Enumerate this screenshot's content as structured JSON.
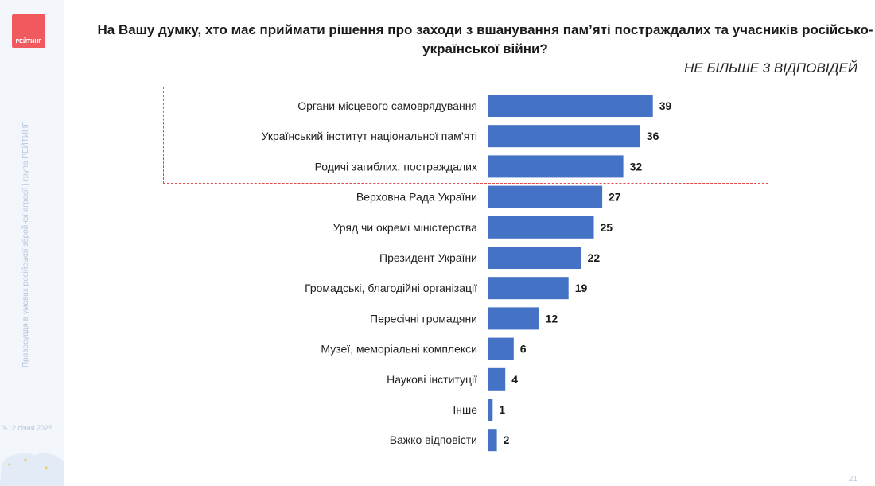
{
  "sidebar": {
    "logo_text": "РЕЙТИНГ",
    "vertical_text": "Правосуддя в умовах російської збройної агресії | група РЕЙТИНГ",
    "date": "3-12 січня 2025"
  },
  "page_number": "21",
  "colors": {
    "bar": "#4472c4",
    "highlight_border": "#e04a4a",
    "logo": "#f05a5f"
  },
  "chart_data": {
    "type": "bar",
    "orientation": "horizontal",
    "title": "На Вашу думку, хто має приймати рішення про заходи з вшанування пам’яті постраждалих та учасників російсько-української війни?",
    "subtitle": "НЕ БІЛЬШЕ 3 ВІДПОВІДЕЙ",
    "categories": [
      "Органи місцевого самоврядування",
      "Український інститут національної пам’яті",
      "Родичі загиблих, постраждалих",
      "Верховна Рада України",
      "Уряд чи окремі міністерства",
      "Президент України",
      "Громадські, благодійні організації",
      "Пересічні громадяни",
      "Музеї, меморіальні комплекси",
      "Наукові інституції",
      "Інше",
      "Важко відповісти"
    ],
    "values": [
      39,
      36,
      32,
      27,
      25,
      22,
      19,
      12,
      6,
      4,
      1,
      2
    ],
    "highlighted_categories": [
      0,
      1,
      2
    ],
    "grid": false,
    "legend": false
  }
}
